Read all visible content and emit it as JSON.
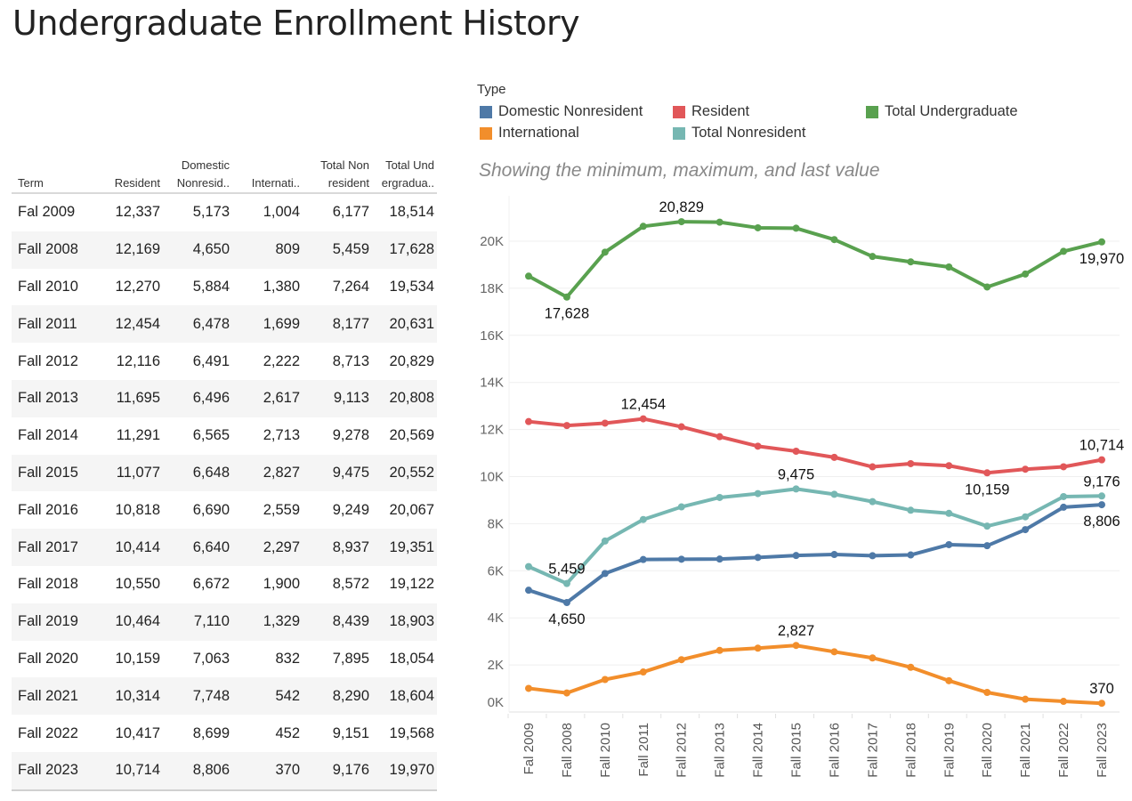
{
  "title": "Undergraduate Enrollment History",
  "table": {
    "headers": [
      [
        "Term"
      ],
      [
        "Resident"
      ],
      [
        "Domestic",
        "Nonresid.."
      ],
      [
        "Internati.."
      ],
      [
        "Total Non",
        "resident"
      ],
      [
        "Total Und",
        "ergradua.."
      ]
    ],
    "rows": [
      [
        "Fal 2009",
        "12,337",
        "5,173",
        "1,004",
        "6,177",
        "18,514"
      ],
      [
        "Fall 2008",
        "12,169",
        "4,650",
        "809",
        "5,459",
        "17,628"
      ],
      [
        "Fall 2010",
        "12,270",
        "5,884",
        "1,380",
        "7,264",
        "19,534"
      ],
      [
        "Fall 2011",
        "12,454",
        "6,478",
        "1,699",
        "8,177",
        "20,631"
      ],
      [
        "Fall 2012",
        "12,116",
        "6,491",
        "2,222",
        "8,713",
        "20,829"
      ],
      [
        "Fall 2013",
        "11,695",
        "6,496",
        "2,617",
        "9,113",
        "20,808"
      ],
      [
        "Fall 2014",
        "11,291",
        "6,565",
        "2,713",
        "9,278",
        "20,569"
      ],
      [
        "Fall 2015",
        "11,077",
        "6,648",
        "2,827",
        "9,475",
        "20,552"
      ],
      [
        "Fall 2016",
        "10,818",
        "6,690",
        "2,559",
        "9,249",
        "20,067"
      ],
      [
        "Fall 2017",
        "10,414",
        "6,640",
        "2,297",
        "8,937",
        "19,351"
      ],
      [
        "Fall 2018",
        "10,550",
        "6,672",
        "1,900",
        "8,572",
        "19,122"
      ],
      [
        "Fall 2019",
        "10,464",
        "7,110",
        "1,329",
        "8,439",
        "18,903"
      ],
      [
        "Fall 2020",
        "10,159",
        "7,063",
        "832",
        "7,895",
        "18,054"
      ],
      [
        "Fall 2021",
        "10,314",
        "7,748",
        "542",
        "8,290",
        "18,604"
      ],
      [
        "Fall 2022",
        "10,417",
        "8,699",
        "452",
        "9,151",
        "19,568"
      ],
      [
        "Fall 2023",
        "10,714",
        "8,806",
        "370",
        "9,176",
        "19,970"
      ]
    ]
  },
  "legend": {
    "title": "Type",
    "items": [
      {
        "label": "Domestic Nonresident",
        "color": "#4e79a7"
      },
      {
        "label": "Resident",
        "color": "#e15759"
      },
      {
        "label": "Total Undergraduate",
        "color": "#59a14f"
      },
      {
        "label": "International",
        "color": "#f28e2b"
      },
      {
        "label": "Total Nonresident",
        "color": "#76b7b2"
      }
    ]
  },
  "subtitle": "Showing the minimum, maximum, and last value",
  "chart_data": {
    "type": "line",
    "title": "Undergraduate Enrollment History",
    "subtitle": "Showing the minimum, maximum, and last value",
    "xlabel": "",
    "ylabel": "",
    "x": [
      "Fal 2009",
      "Fall 2008",
      "Fall 2010",
      "Fall 2011",
      "Fall 2012",
      "Fall 2013",
      "Fall 2014",
      "Fall 2015",
      "Fall 2016",
      "Fall 2017",
      "Fall 2018",
      "Fall 2019",
      "Fall 2020",
      "Fall 2021",
      "Fall 2022",
      "Fall 2023"
    ],
    "ylim": [
      0,
      22000
    ],
    "yticks": [
      0,
      2000,
      4000,
      6000,
      8000,
      10000,
      12000,
      14000,
      16000,
      18000,
      20000
    ],
    "ytick_labels": [
      "0K",
      "2K",
      "4K",
      "6K",
      "8K",
      "10K",
      "12K",
      "14K",
      "16K",
      "18K",
      "20K"
    ],
    "grid": true,
    "legend_position": "top",
    "series": [
      {
        "name": "Total Undergraduate",
        "color": "#59a14f",
        "values": [
          18514,
          17628,
          19534,
          20631,
          20829,
          20808,
          20569,
          20552,
          20067,
          19351,
          19122,
          18903,
          18054,
          18604,
          19568,
          19970
        ],
        "labels": [
          {
            "index": 1,
            "text": "17,628",
            "pos": "below"
          },
          {
            "index": 4,
            "text": "20,829",
            "pos": "above"
          },
          {
            "index": 15,
            "text": "19,970",
            "pos": "below"
          }
        ]
      },
      {
        "name": "Resident",
        "color": "#e15759",
        "values": [
          12337,
          12169,
          12270,
          12454,
          12116,
          11695,
          11291,
          11077,
          10818,
          10414,
          10550,
          10464,
          10159,
          10314,
          10417,
          10714
        ],
        "labels": [
          {
            "index": 3,
            "text": "12,454",
            "pos": "above"
          },
          {
            "index": 12,
            "text": "10,159",
            "pos": "below"
          },
          {
            "index": 15,
            "text": "10,714",
            "pos": "above"
          }
        ]
      },
      {
        "name": "Total Nonresident",
        "color": "#76b7b2",
        "values": [
          6177,
          5459,
          7264,
          8177,
          8713,
          9113,
          9278,
          9475,
          9249,
          8937,
          8572,
          8439,
          7895,
          8290,
          9151,
          9176
        ],
        "labels": [
          {
            "index": 1,
            "text": "5,459",
            "pos": "above"
          },
          {
            "index": 7,
            "text": "9,475",
            "pos": "above"
          },
          {
            "index": 15,
            "text": "9,176",
            "pos": "above"
          }
        ]
      },
      {
        "name": "Domestic Nonresident",
        "color": "#4e79a7",
        "values": [
          5173,
          4650,
          5884,
          6478,
          6491,
          6496,
          6565,
          6648,
          6690,
          6640,
          6672,
          7110,
          7063,
          7748,
          8699,
          8806
        ],
        "labels": [
          {
            "index": 1,
            "text": "4,650",
            "pos": "below"
          },
          {
            "index": 15,
            "text": "8,806",
            "pos": "below"
          }
        ]
      },
      {
        "name": "International",
        "color": "#f28e2b",
        "values": [
          1004,
          809,
          1380,
          1699,
          2222,
          2617,
          2713,
          2827,
          2559,
          2297,
          1900,
          1329,
          832,
          542,
          452,
          370
        ],
        "labels": [
          {
            "index": 7,
            "text": "2,827",
            "pos": "above"
          },
          {
            "index": 15,
            "text": "370",
            "pos": "above"
          }
        ]
      }
    ]
  }
}
